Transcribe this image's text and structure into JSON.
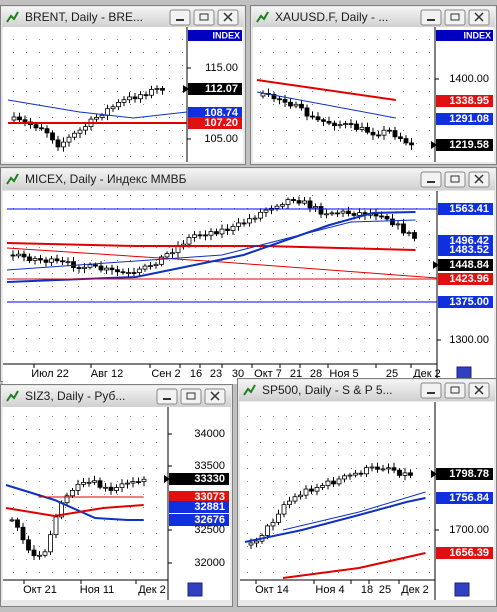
{
  "windows": [
    {
      "title": "BRENT, Daily - BRE...",
      "index": "INDEX",
      "price_labels": [
        {
          "text": "115.00"
        },
        {
          "text": "112.07",
          "color": "black"
        },
        {
          "text": "108.74",
          "color": "blue"
        },
        {
          "text": "107.20",
          "color": "red"
        },
        {
          "text": "105.00"
        }
      ],
      "time_labels": []
    },
    {
      "title": "XAUUSD.F, Daily - ...",
      "index": "INDEX",
      "price_labels": [
        {
          "text": "1400.00"
        },
        {
          "text": "1338.95",
          "color": "red"
        },
        {
          "text": "1291.08",
          "color": "blue"
        },
        {
          "text": "1219.58",
          "color": "black"
        }
      ],
      "time_labels": []
    },
    {
      "title": "MICEX, Daily - Индекс ММВБ",
      "price_labels": [
        {
          "text": "1563.41",
          "color": "blue"
        },
        {
          "text": "1496.42",
          "color": "blue"
        },
        {
          "text": "1483.52",
          "color": "blue"
        },
        {
          "text": "1448.84",
          "color": "black"
        },
        {
          "text": "1423.96",
          "color": "red"
        },
        {
          "text": "1375.00",
          "color": "blue"
        },
        {
          "text": "1300.00"
        }
      ],
      "time_labels": [
        "Июл 22",
        "Авг 12",
        "Сен 2",
        "16",
        "23",
        "30",
        "Окт 7",
        "21",
        "28",
        "Ноя 5",
        "25",
        "Дек 2"
      ]
    },
    {
      "title": "SIZ3, Daily - Руб...",
      "price_labels": [
        {
          "text": "34000"
        },
        {
          "text": "33500"
        },
        {
          "text": "33330",
          "color": "black"
        },
        {
          "text": "33073",
          "color": "red"
        },
        {
          "text": "32881",
          "color": "blue"
        },
        {
          "text": "32676",
          "color": "blue"
        },
        {
          "text": "32500"
        },
        {
          "text": "32000"
        }
      ],
      "time_labels": [
        "Окт 21",
        "Ноя 11",
        "Дек 2"
      ]
    },
    {
      "title": "SP500, Daily - S & P 5...",
      "price_labels": [
        {
          "text": "1798.78",
          "color": "black"
        },
        {
          "text": "1756.84",
          "color": "blue"
        },
        {
          "text": "1700.00"
        },
        {
          "text": "1656.39",
          "color": "red"
        }
      ],
      "time_labels": [
        "Окт 14",
        "Ноя 4",
        "18",
        "25",
        "Дек 2"
      ]
    }
  ]
}
